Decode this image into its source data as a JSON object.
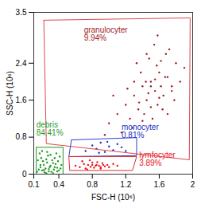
{
  "chart_data": {
    "type": "scatter",
    "x_label": "FSC-H (10⁶)",
    "y_label": "SSC-H (10⁶)",
    "xlim": [
      0.1,
      2
    ],
    "ylim": [
      0,
      3.5
    ],
    "xticks": [
      0.1,
      0.4,
      0.8,
      1.2,
      1.6,
      2
    ],
    "yticks": [
      0,
      0.8,
      1.6,
      2.4,
      3.5
    ],
    "series": [
      {
        "name": "granulocyter",
        "value_label": "9.94%",
        "color": "#a01c1c",
        "gate_color": "#e04848",
        "gate": [
          [
            0.22,
            3.33
          ],
          [
            1.97,
            3.38
          ],
          [
            1.96,
            0.31
          ],
          [
            0.25,
            0.66
          ]
        ],
        "x": [
          1.0,
          1.1,
          1.2,
          1.25,
          1.3,
          1.35,
          1.4,
          1.45,
          1.5,
          1.55,
          1.6,
          1.65,
          1.7,
          1.75,
          1.8,
          1.85,
          1.9,
          1.15,
          1.28,
          1.38,
          1.48,
          1.58,
          1.68,
          1.78,
          1.42,
          1.52,
          1.62,
          1.72,
          1.33,
          1.47,
          1.57,
          1.67,
          1.22,
          1.36,
          1.5,
          1.64,
          1.44,
          1.54,
          1.6,
          1.7,
          0.95,
          1.05,
          1.3,
          1.45,
          1.55,
          1.75,
          1.5,
          1.62,
          1.4,
          1.58
        ],
        "y": [
          1.1,
          1.3,
          1.5,
          1.2,
          1.7,
          1.4,
          1.9,
          1.6,
          2.0,
          1.8,
          2.2,
          1.7,
          2.1,
          1.9,
          2.4,
          2.0,
          2.3,
          0.9,
          1.0,
          2.2,
          2.5,
          1.5,
          2.6,
          1.6,
          1.3,
          1.2,
          1.9,
          2.7,
          2.4,
          1.75,
          2.35,
          2.1,
          1.85,
          1.55,
          1.45,
          1.4,
          2.0,
          2.8,
          1.65,
          1.3,
          0.85,
          1.7,
          2.0,
          2.6,
          2.05,
          1.8,
          1.9,
          2.45,
          1.15,
          3.0
        ]
      },
      {
        "name": "debris",
        "value_label": "84.41%",
        "color": "#1f9a1f",
        "gate_color": "#1f9a1f",
        "gate": [
          [
            0.13,
            0.58
          ],
          [
            0.45,
            0.58
          ],
          [
            0.45,
            0
          ],
          [
            0.13,
            0
          ]
        ],
        "x": [
          0.14,
          0.16,
          0.18,
          0.2,
          0.22,
          0.24,
          0.26,
          0.28,
          0.3,
          0.32,
          0.34,
          0.36,
          0.38,
          0.4,
          0.42,
          0.15,
          0.19,
          0.23,
          0.27,
          0.31,
          0.35,
          0.39,
          0.43,
          0.17,
          0.21,
          0.25,
          0.29,
          0.33,
          0.37,
          0.41,
          0.2,
          0.25,
          0.3,
          0.35,
          0.22,
          0.28,
          0.33,
          0.18,
          0.26,
          0.38
        ],
        "y": [
          0.05,
          0.1,
          0.15,
          0.08,
          0.2,
          0.12,
          0.25,
          0.06,
          0.18,
          0.3,
          0.1,
          0.22,
          0.14,
          0.08,
          0.12,
          0.3,
          0.35,
          0.04,
          0.4,
          0.05,
          0.35,
          0.28,
          0.2,
          0.45,
          0.28,
          0.32,
          0.15,
          0.02,
          0.45,
          0.38,
          0.5,
          0.02,
          0.42,
          0.15,
          0.09,
          0.11,
          0.24,
          0.2,
          0.48,
          0.06
        ]
      },
      {
        "name": "monocyter",
        "value_label": "0.81%",
        "color": "#2030c0",
        "gate_color": "#3040d0",
        "gate": [
          [
            0.55,
            0.74
          ],
          [
            1.33,
            0.79
          ],
          [
            1.33,
            0.4
          ],
          [
            0.52,
            0.38
          ]
        ],
        "x": [
          0.72,
          0.8,
          0.85,
          0.9,
          0.95,
          1.0,
          1.05,
          1.1,
          1.15,
          0.88,
          0.98,
          1.2
        ],
        "y": [
          0.5,
          0.62,
          0.55,
          0.68,
          0.48,
          0.6,
          0.52,
          0.65,
          0.58,
          0.46,
          0.7,
          0.5
        ]
      },
      {
        "name": "lymfocyter",
        "value_label": "3.89%",
        "color": "#e8141e",
        "gate_color": "#e03030",
        "gate": [
          [
            0.52,
            0.38
          ],
          [
            1.33,
            0.38
          ],
          [
            1.28,
            0.08
          ],
          [
            0.53,
            0.08
          ]
        ],
        "x": [
          0.6,
          0.65,
          0.7,
          0.72,
          0.75,
          0.78,
          0.8,
          0.82,
          0.85,
          0.88,
          0.9,
          0.92,
          0.95,
          0.98,
          1.0,
          1.05,
          0.68,
          0.74,
          0.8,
          0.86,
          0.93,
          0.77,
          0.84,
          0.9,
          1.1
        ],
        "y": [
          0.18,
          0.15,
          0.22,
          0.12,
          0.2,
          0.16,
          0.25,
          0.14,
          0.2,
          0.18,
          0.12,
          0.24,
          0.17,
          0.2,
          0.15,
          0.22,
          0.28,
          0.1,
          0.2,
          0.26,
          0.2,
          0.3,
          0.18,
          0.15,
          0.18
        ]
      }
    ]
  }
}
